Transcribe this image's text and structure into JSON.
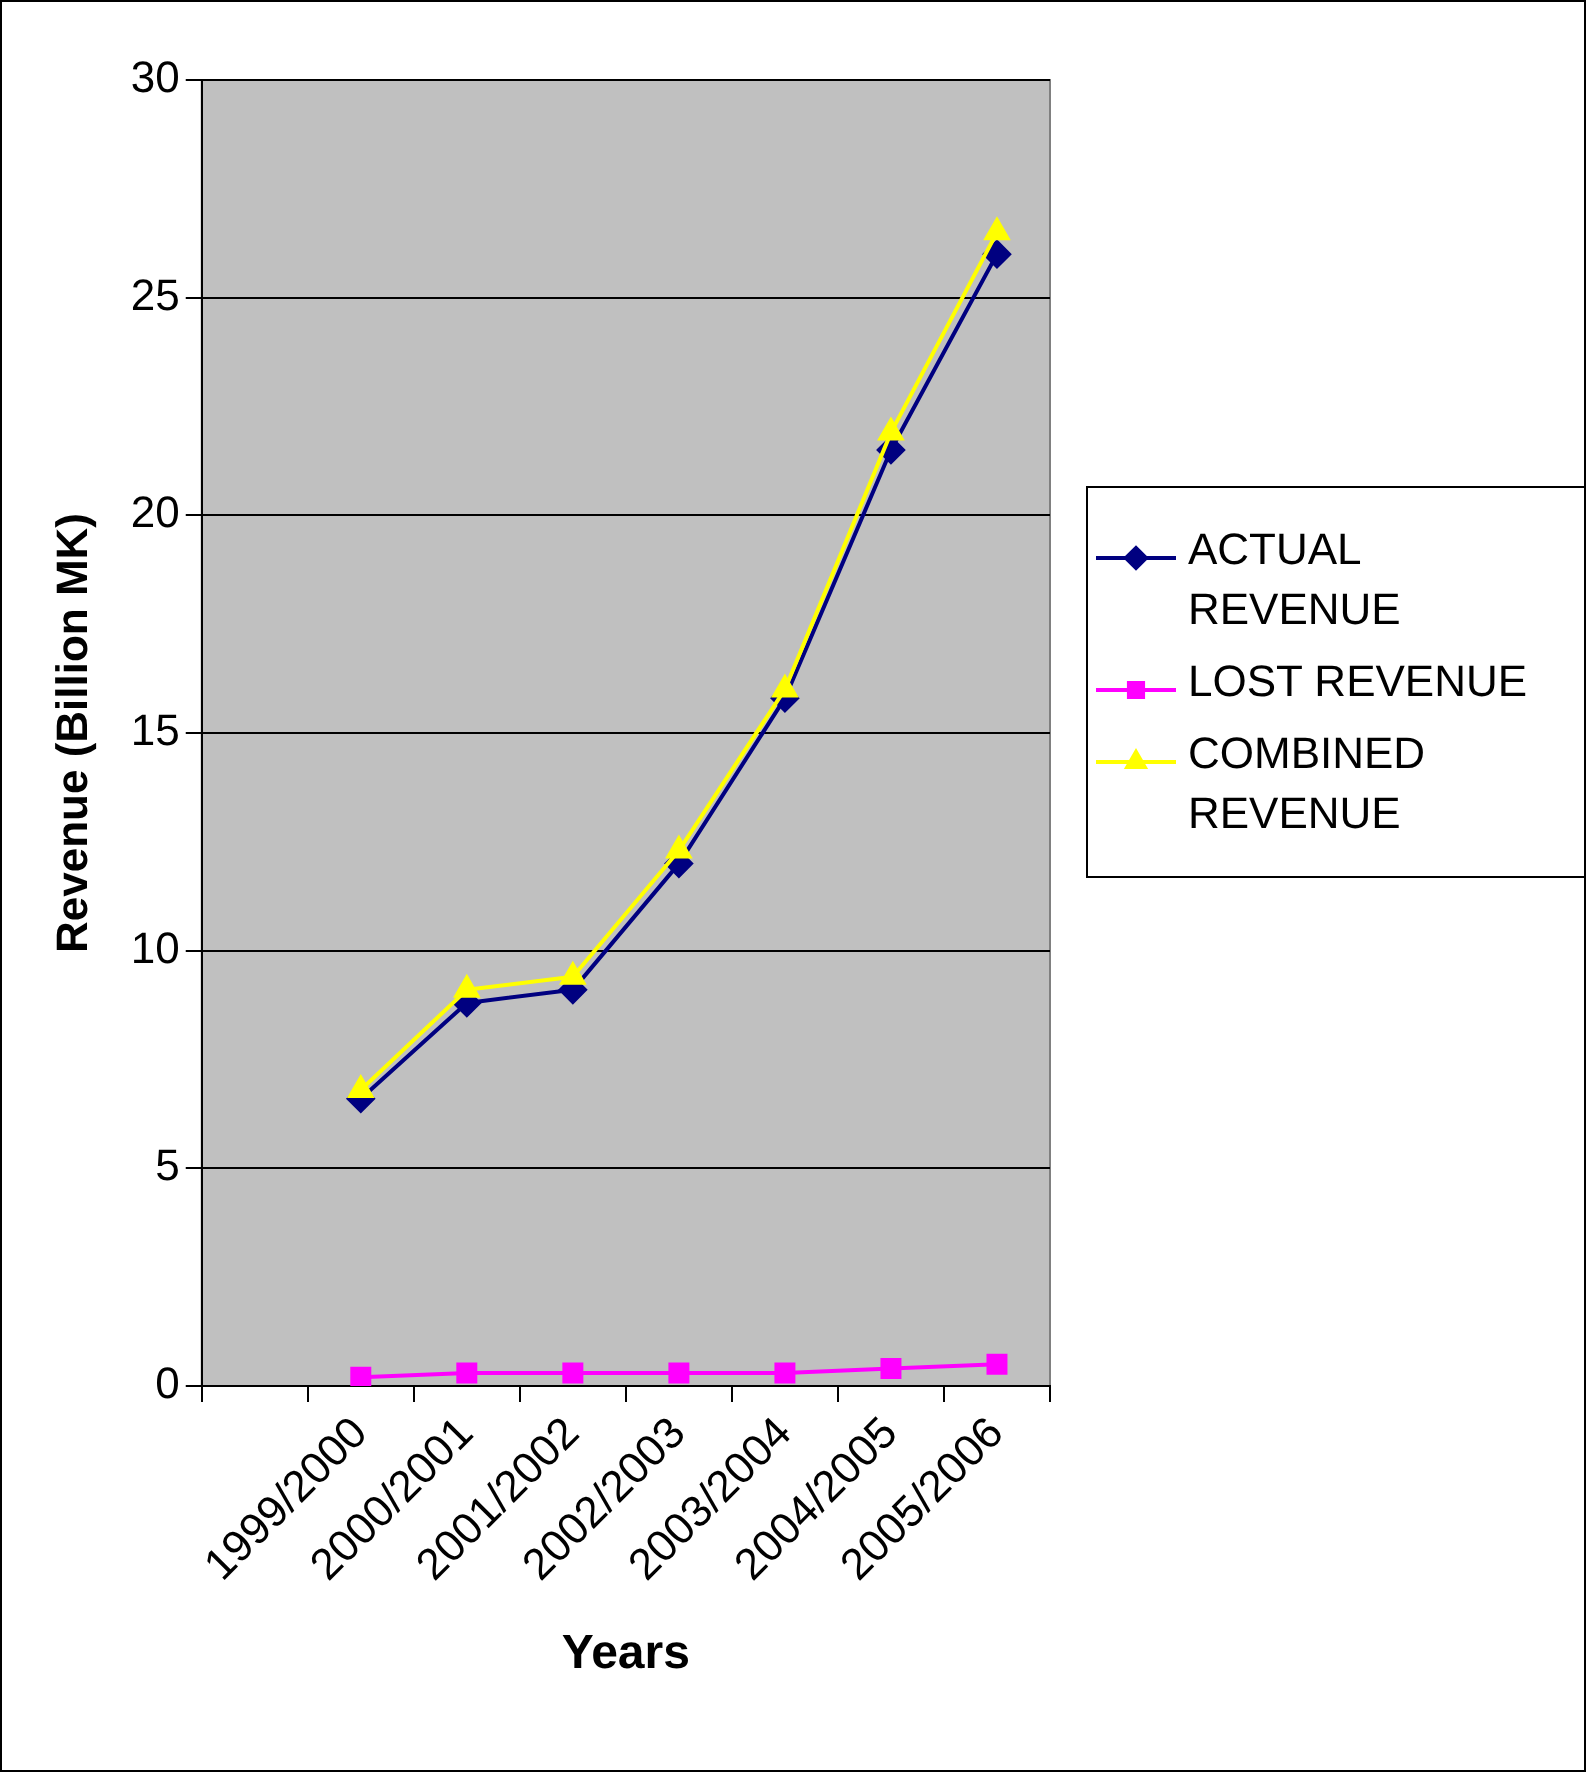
{
  "chart_data": {
    "type": "line",
    "xlabel": "Years",
    "ylabel": "Revenue (Billion MK)",
    "categories": [
      null,
      "1999/2000",
      "2000/2001",
      "2001/2002",
      "2002/2003",
      "2003/2004",
      "2004/2005",
      "2005/2006"
    ],
    "series": [
      {
        "name": "ACTUAL REVENUE",
        "color": "#000080",
        "marker": "diamond",
        "values": [
          null,
          6.6,
          8.8,
          9.1,
          12.0,
          15.8,
          21.5,
          26.0
        ]
      },
      {
        "name": "LOST REVENUE",
        "color": "#ff00ff",
        "marker": "square",
        "values": [
          null,
          0.2,
          0.3,
          0.3,
          0.3,
          0.3,
          0.4,
          0.5
        ]
      },
      {
        "name": "COMBINED REVENUE",
        "color": "#ffff00",
        "marker": "triangle",
        "values": [
          null,
          6.8,
          9.1,
          9.4,
          12.3,
          16.0,
          21.9,
          26.5
        ]
      }
    ],
    "ylim": [
      0,
      30
    ],
    "yticks": [
      0,
      5,
      10,
      15,
      20,
      25,
      30
    ],
    "grid": "y",
    "legend": "right",
    "line_style": "solid"
  }
}
